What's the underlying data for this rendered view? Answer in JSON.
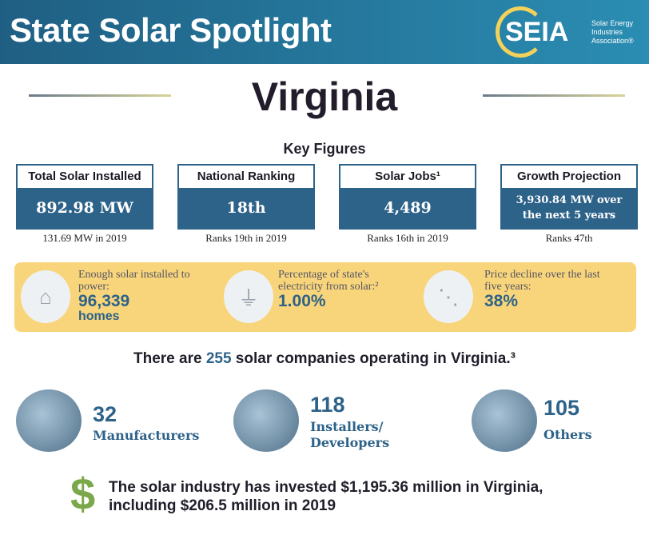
{
  "header": {
    "title": "State Solar Spotlight",
    "logo_text": "SEIA",
    "logo_sub": [
      "Solar Energy",
      "Industries",
      "Association®"
    ]
  },
  "state": "Virginia",
  "key_figures": {
    "title": "Key Figures",
    "boxes": [
      {
        "label": "Total Solar Installed",
        "value": "892.98 MW",
        "sub": "131.69 MW in 2019"
      },
      {
        "label": "National Ranking",
        "value": "18th",
        "sub": "Ranks 19th in 2019"
      },
      {
        "label": "Solar Jobs¹",
        "value": "4,489",
        "sub": "Ranks 16th in 2019"
      },
      {
        "label": "Growth Projection",
        "value": "3,930.84 MW over the next 5 years",
        "sub": "Ranks 47th"
      }
    ]
  },
  "band": [
    {
      "icon": "house-icon",
      "text": "Enough solar installed to power:",
      "value": "96,339",
      "unit": "homes"
    },
    {
      "icon": "plug-icon",
      "text": "Percentage of state's electricity from solar:²",
      "value": "1.00%"
    },
    {
      "icon": "price-decline-icon",
      "text": "Price decline over the last five years:",
      "value": "38%"
    }
  ],
  "companies": {
    "pre": "There are ",
    "count": "255",
    "post": " solar companies operating in Virginia.³",
    "groups": [
      {
        "count": "32",
        "label": "Manufacturers"
      },
      {
        "count": "118",
        "label": "Installers/ Developers"
      },
      {
        "count": "105",
        "label": "Others"
      }
    ]
  },
  "investment": {
    "line1": "The solar industry has invested $1,195.36 million in Virginia,",
    "line2": "including $206.5 million in 2019"
  },
  "colors": {
    "blue": "#2d6289",
    "yellow": "#f8d57a",
    "green": "#7aa84a"
  }
}
